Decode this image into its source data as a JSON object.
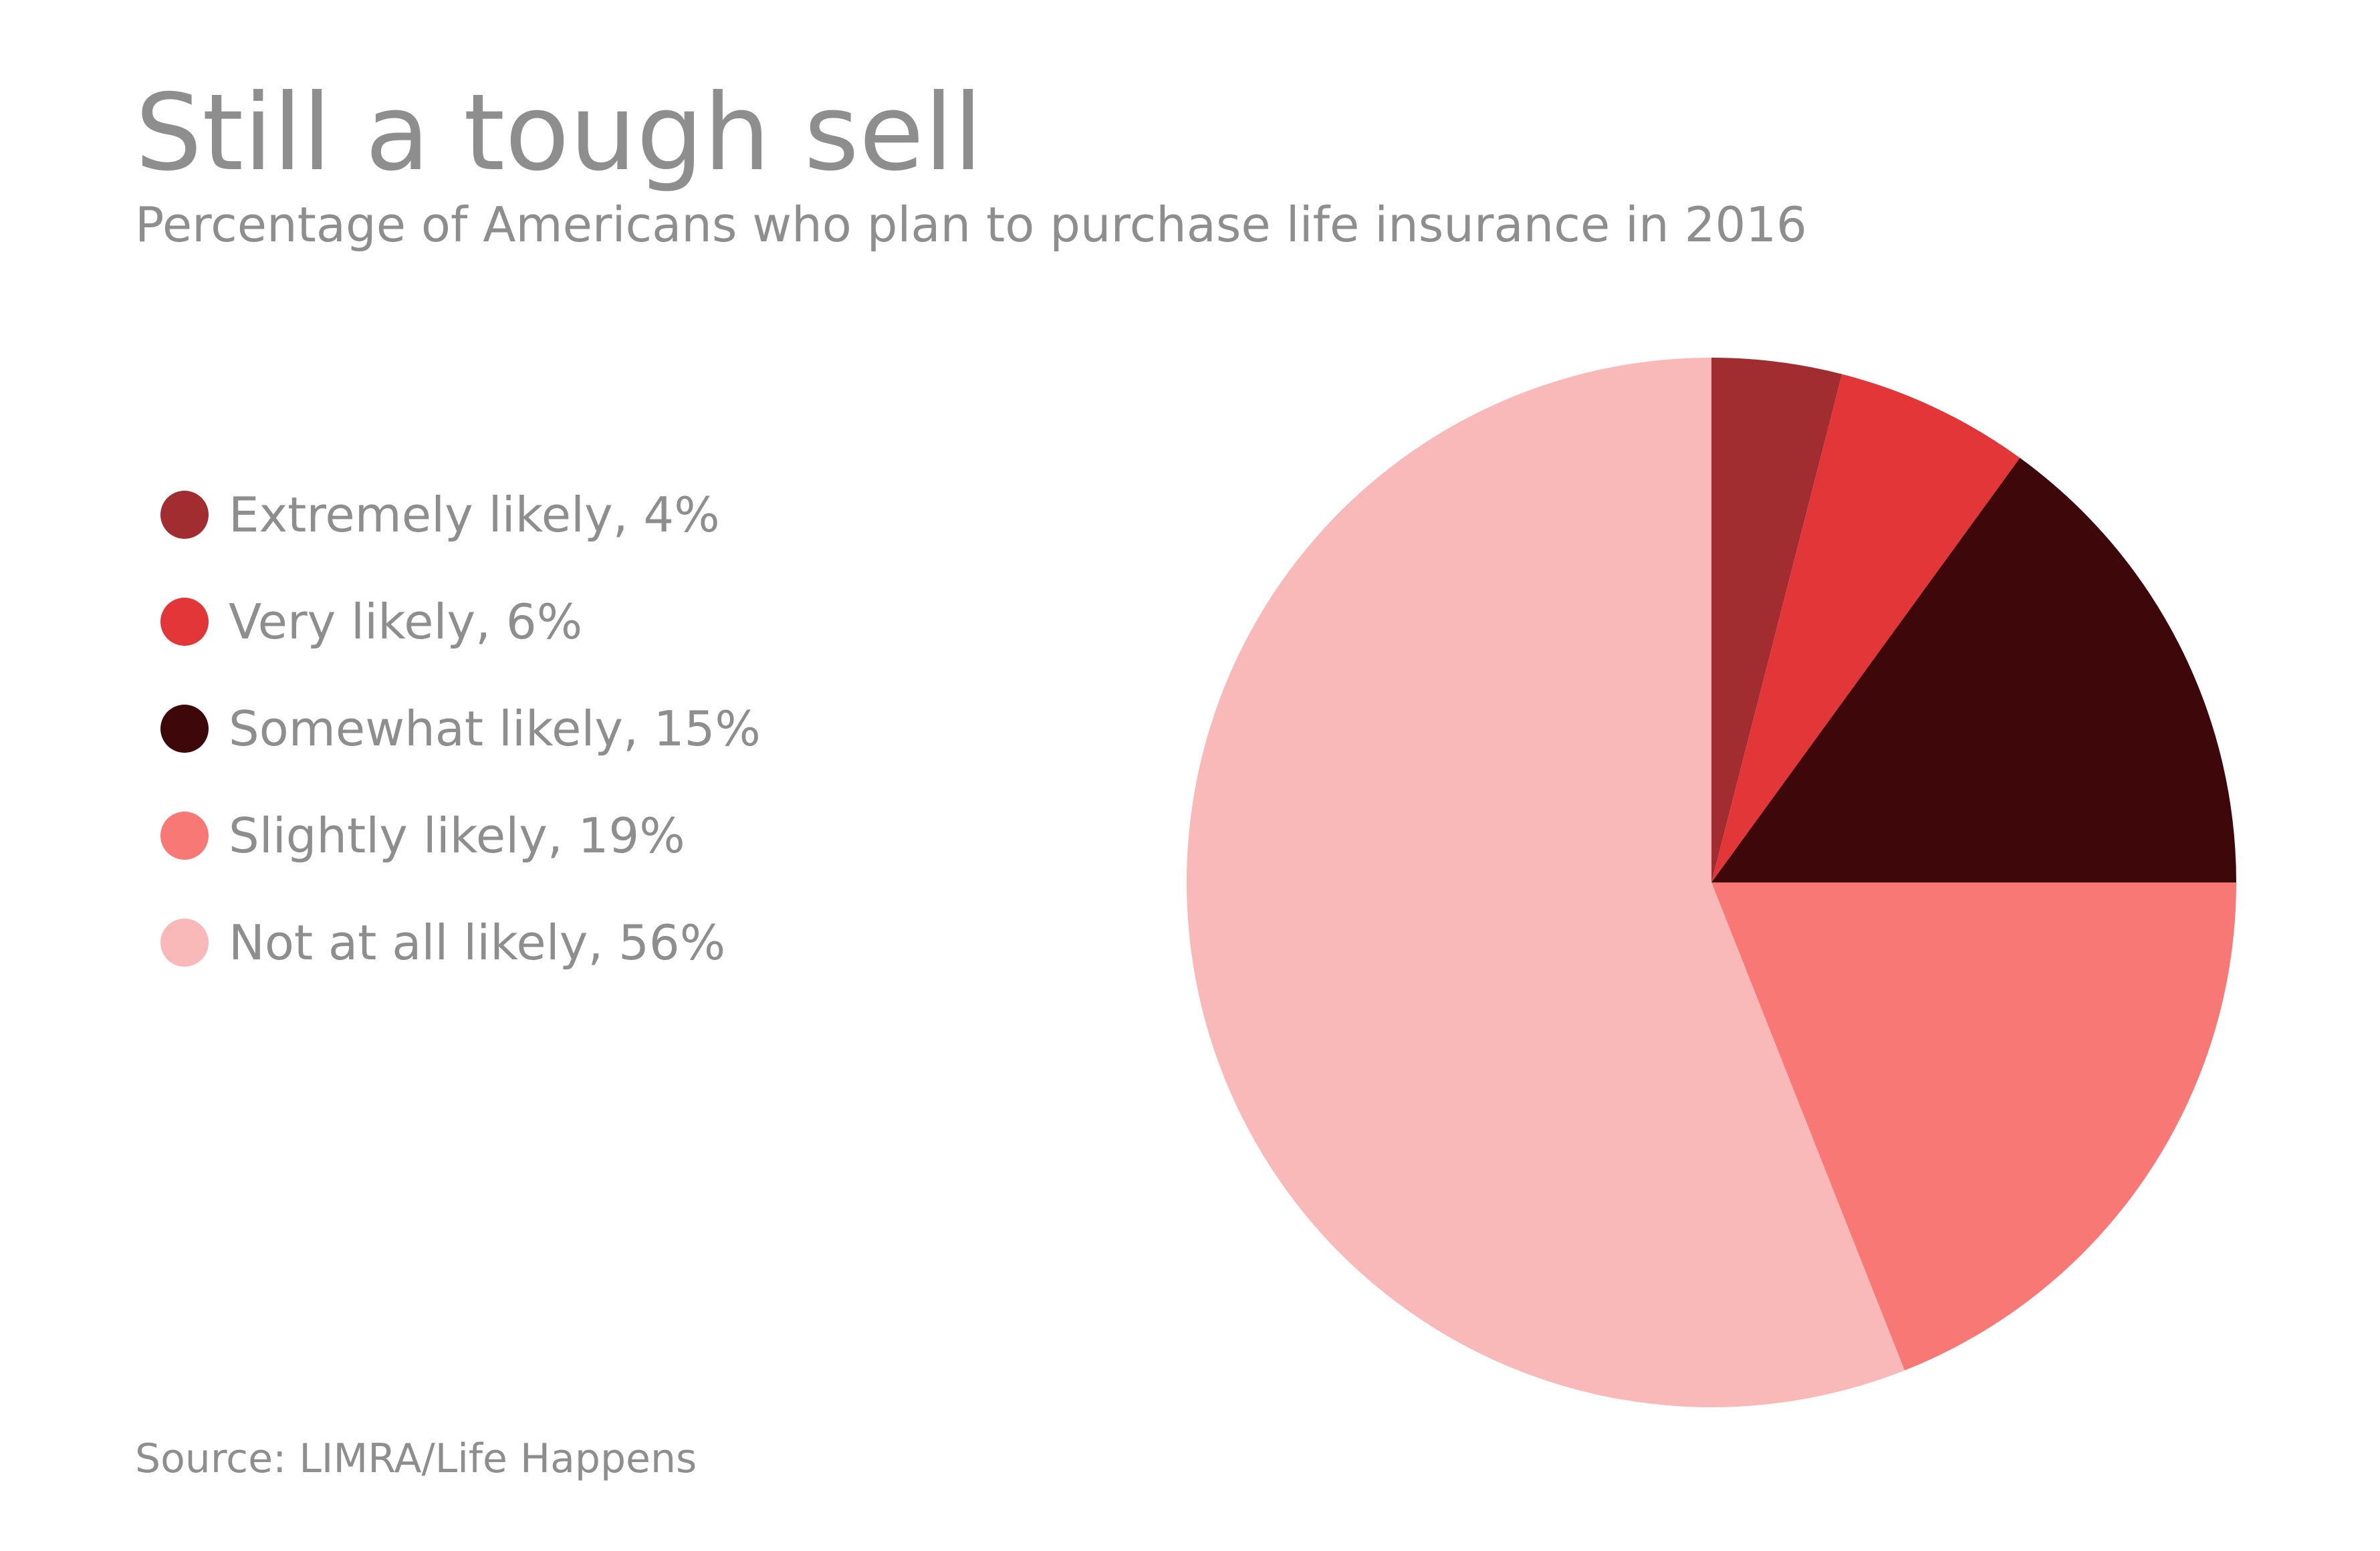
{
  "chart_data": {
    "type": "pie",
    "title": "Still a tough sell",
    "subtitle": "Percentage of Americans who plan to purchase life insurance in 2016",
    "source": "Source: LIMRA/Life Happens",
    "legend_placement": "left",
    "slices": [
      {
        "name": "Extremely likely",
        "value": 4,
        "label": "Extremely likely, 4%",
        "color": "#a12d30"
      },
      {
        "name": "Very likely",
        "value": 6,
        "label": "Very likely, 6%",
        "color": "#e33638"
      },
      {
        "name": "Somewhat likely",
        "value": 15,
        "label": "Somewhat likely, 15%",
        "color": "#3e080a"
      },
      {
        "name": "Slightly likely",
        "value": 19,
        "label": "Slightly likely, 19%",
        "color": "#f87876"
      },
      {
        "name": "Not at all likely",
        "value": 56,
        "label": "Not at all likely, 56%",
        "color": "#f9b9b8"
      }
    ]
  }
}
